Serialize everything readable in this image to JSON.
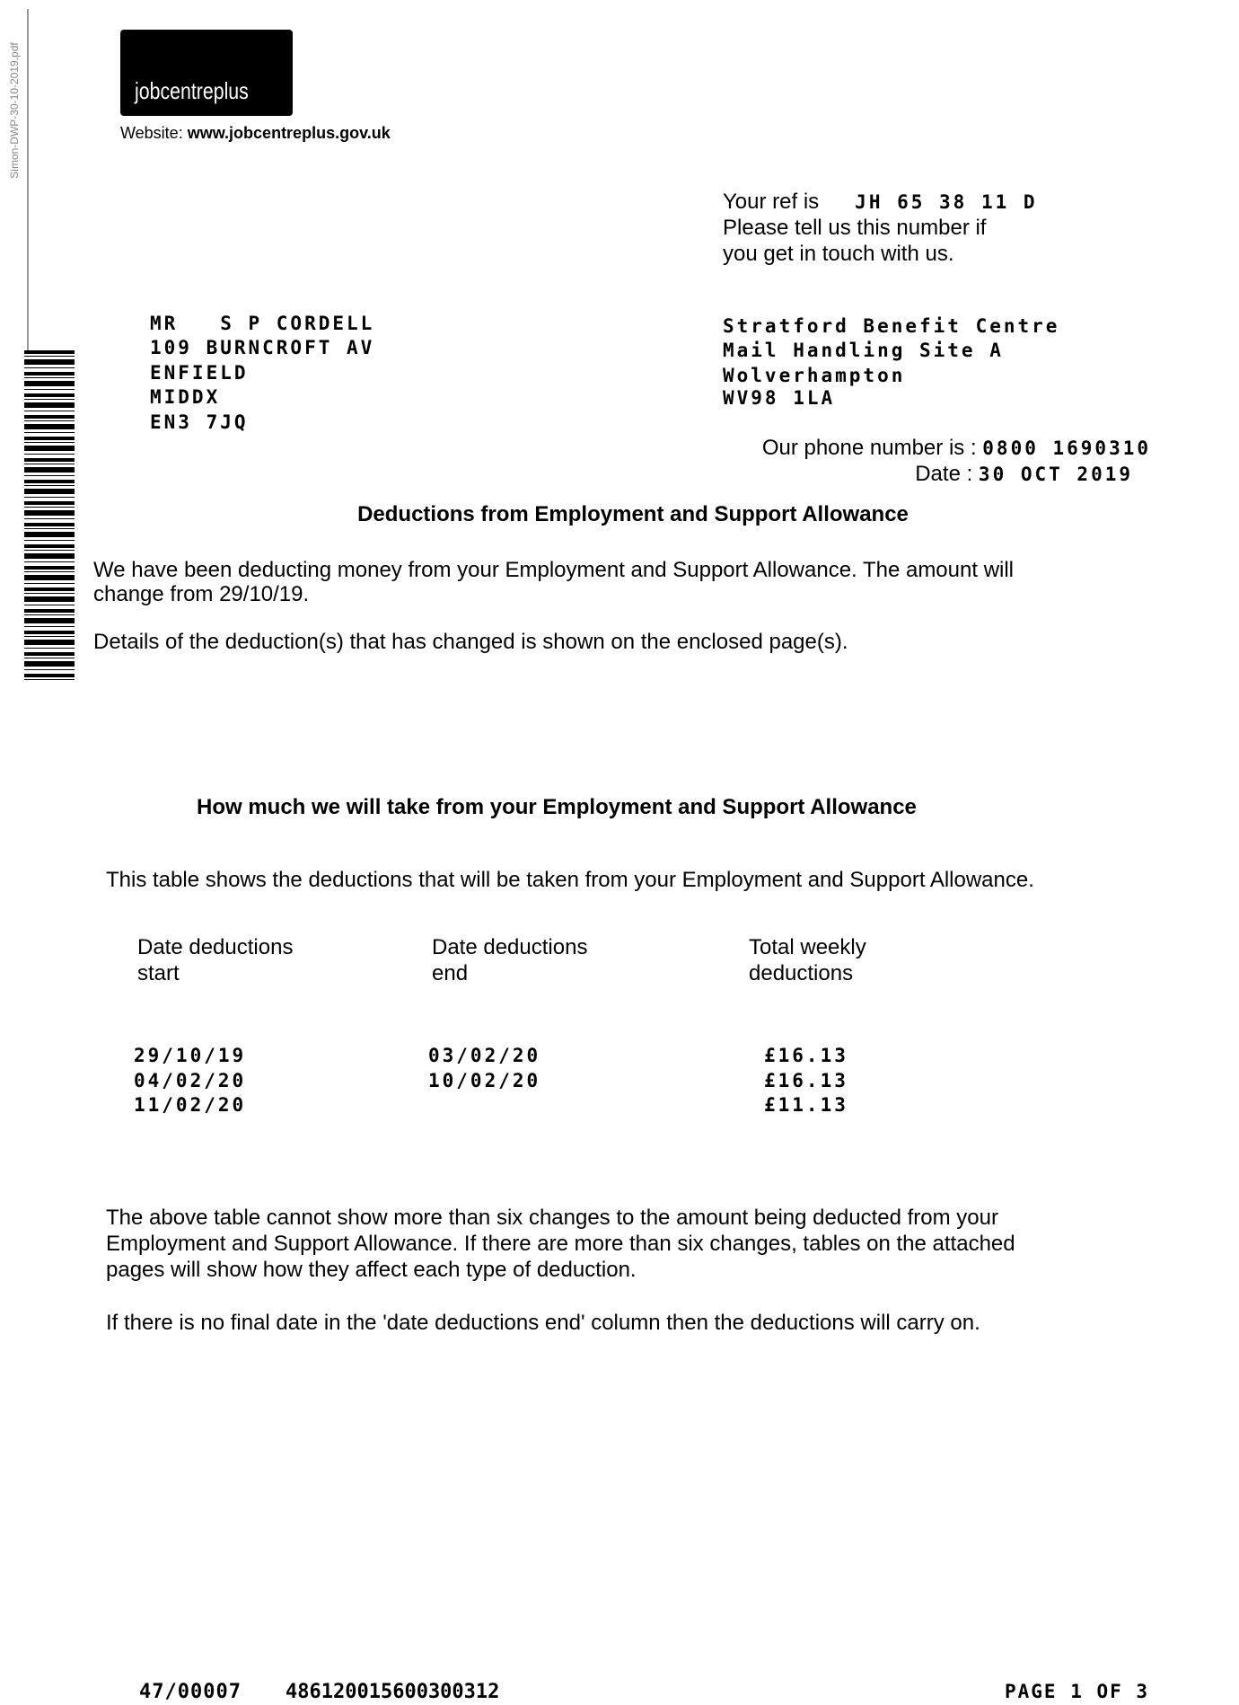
{
  "side_label": "Simon-DWP-30-10-2019.pdf",
  "logo": {
    "text": "jobcentreplus"
  },
  "website": {
    "label": "Website:",
    "url": "www.jobcentreplus.gov.uk"
  },
  "reference": {
    "label": "Your ref is",
    "value": "JH 65 38 11 D",
    "note_line1": "Please tell us this number if",
    "note_line2": "you get in touch with us."
  },
  "recipient": {
    "lines": [
      "MR   S P CORDELL",
      "109 BURNCROFT AV",
      "ENFIELD",
      "MIDDX",
      "EN3 7JQ"
    ]
  },
  "sender": {
    "lines": [
      "Stratford Benefit Centre",
      "Mail Handling Site A",
      "Wolverhampton"
    ],
    "postcode": "WV98 1LA"
  },
  "phone": {
    "label": "Our phone number is :",
    "value": "0800 1690310"
  },
  "date": {
    "label": "Date :",
    "value": "30 OCT 2019"
  },
  "heading1": "Deductions from Employment and Support Allowance",
  "para1_line1": "We have been deducting money from your Employment and Support Allowance. The amount will",
  "para1_line2": "change from 29/10/19.",
  "para2": "Details of the deduction(s) that has changed is shown on the enclosed page(s).",
  "heading2": "How much we will take from your Employment and Support Allowance",
  "table_intro": "This table shows the deductions that will be taken from your Employment and Support Allowance.",
  "table": {
    "headers": [
      [
        "Date deductions",
        "start"
      ],
      [
        "Date deductions",
        "end"
      ],
      [
        "Total weekly",
        "deductions"
      ]
    ],
    "rows": [
      [
        "29/10/19",
        "03/02/20",
        "£16.13"
      ],
      [
        "04/02/20",
        "10/02/20",
        "£16.13"
      ],
      [
        "11/02/20",
        "",
        "£11.13"
      ]
    ]
  },
  "note1_lines": [
    "The above table cannot show more than six changes to the amount being deducted from your",
    "Employment and Support Allowance. If there are more than six changes, tables on the attached",
    "pages will show how they affect each type of deduction."
  ],
  "note2": "If there is no final date in the 'date deductions end' column then the deductions will carry on.",
  "footer": {
    "code1": "47/00007",
    "code2": "486120015600300312",
    "page": "PAGE 1 OF 3"
  }
}
